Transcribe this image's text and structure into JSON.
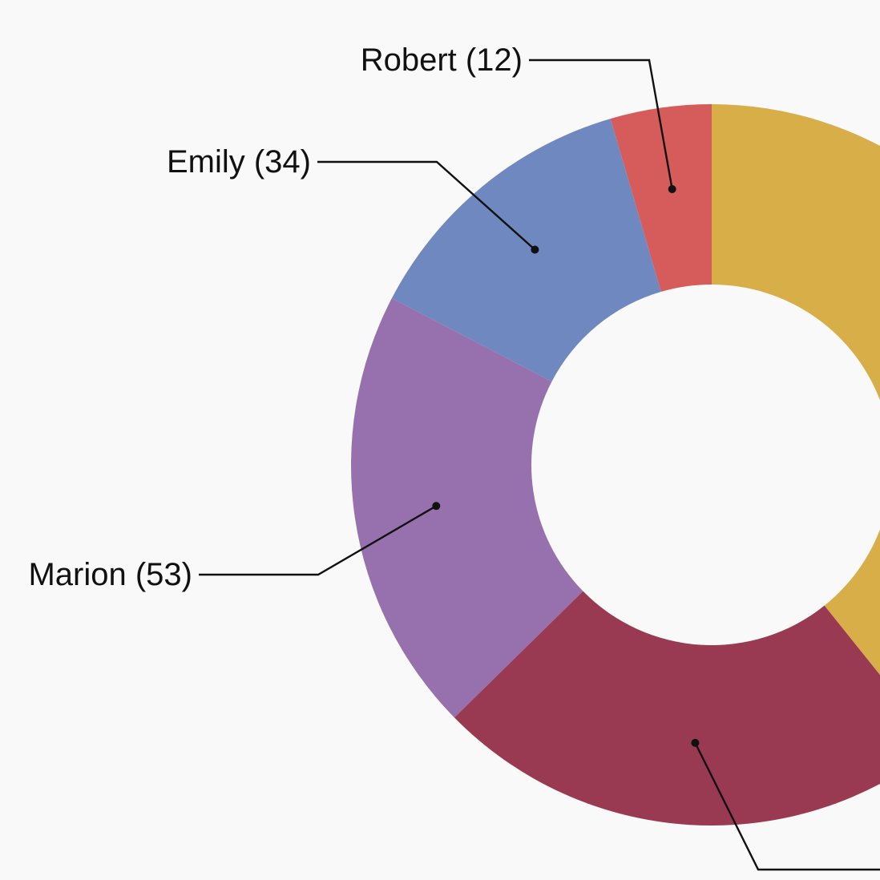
{
  "chart_data": {
    "type": "pie",
    "variant": "donut",
    "slices": [
      {
        "name": "Robert",
        "value": 12,
        "label": "Robert (12)",
        "color": "#d65c5b"
      },
      {
        "name": "Emily",
        "value": 34,
        "label": "Emily (34)",
        "color": "#6f88c0"
      },
      {
        "name": "Marion",
        "value": 53,
        "label": "Marion (53)",
        "color": "#9671ad"
      },
      {
        "name": "",
        "value": 62,
        "label": "",
        "color": "#993a52"
      },
      {
        "name": "",
        "value": 104,
        "label": "",
        "color": "#d8ae48"
      }
    ],
    "legend": "none"
  }
}
